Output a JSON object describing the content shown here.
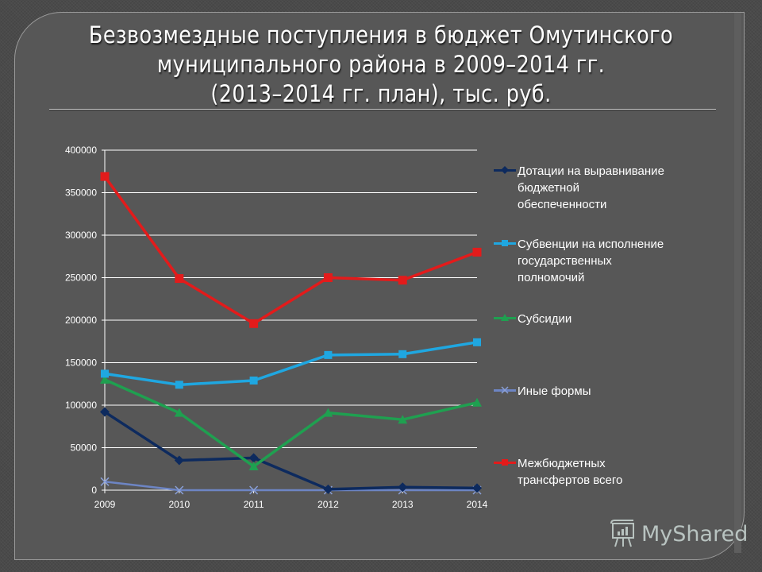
{
  "slide": {
    "title_lines": [
      "Безвозмездные поступления в бюджет Омутинского",
      "муниципального района в 2009–2014 гг.",
      "(2013–2014 гг. план), тыс. руб."
    ]
  },
  "colors": {
    "background": "#4a4a4a",
    "panel": "#575757",
    "grid": "#ffffff",
    "dotations": "#0d2a5e",
    "subventions": "#1fa7e1",
    "subsidies": "#1fa050",
    "other": "#6d85c4",
    "total": "#e31b1b"
  },
  "chart_data": {
    "type": "line",
    "title": "Безвозмездные поступления в бюджет Омутинского муниципального района в 2009–2014 гг. (2013–2014 гг. план), тыс. руб.",
    "xlabel": "",
    "ylabel": "",
    "categories": [
      "2009",
      "2010",
      "2011",
      "2012",
      "2013",
      "2014"
    ],
    "y_ticks": [
      "0",
      "50000",
      "100000",
      "150000",
      "200000",
      "250000",
      "300000",
      "350000",
      "400000"
    ],
    "ylim": [
      0,
      400000
    ],
    "grid": true,
    "legend_position": "right",
    "series": [
      {
        "name": "Дотации на выравнивание бюджетной обеспеченности",
        "marker": "diamond",
        "color": "#0d2a5e",
        "values": [
          92000,
          35000,
          38000,
          1000,
          3500,
          2500
        ]
      },
      {
        "name": "Субвенции на исполнение государственных полномочий",
        "marker": "square",
        "color": "#1fa7e1",
        "values": [
          137000,
          124000,
          129000,
          159000,
          160000,
          174000
        ]
      },
      {
        "name": "Субсидии",
        "marker": "triangle",
        "color": "#1fa050",
        "values": [
          130000,
          91000,
          28000,
          91000,
          83000,
          103000
        ]
      },
      {
        "name": "Иные формы",
        "marker": "x",
        "color": "#6d85c4",
        "values": [
          10000,
          0,
          0,
          0,
          0,
          0
        ]
      },
      {
        "name": "Межбюджетных трансфертов всего",
        "marker": "square",
        "color": "#e31b1b",
        "values": [
          369000,
          249000,
          196000,
          250000,
          247000,
          280000
        ]
      }
    ]
  },
  "legend": {
    "items": [
      {
        "lines": [
          "Дотации на выравнивание",
          "бюджетной",
          "обеспеченности"
        ]
      },
      {
        "lines": [
          "Субвенции на исполнение",
          "государственных",
          "полномочий"
        ]
      },
      {
        "lines": [
          "Субсидии"
        ]
      },
      {
        "lines": [
          "Иные формы"
        ]
      },
      {
        "lines": [
          "Межбюджетных",
          "трансфертов всего"
        ]
      }
    ]
  },
  "watermark": {
    "text": "MyShared",
    "icon": "presentation-board-icon"
  }
}
